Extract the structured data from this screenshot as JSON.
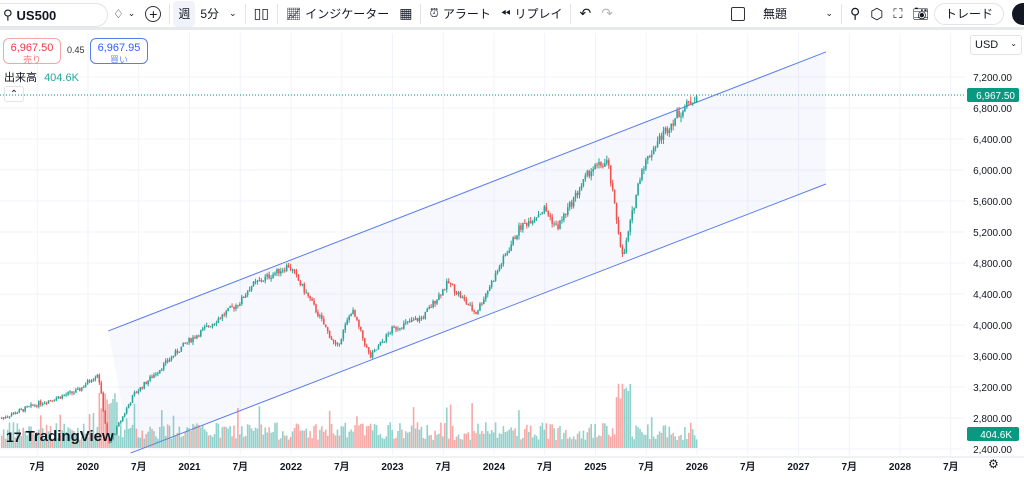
{
  "toolbar": {
    "symbol": "US500",
    "interval_week": "週",
    "interval": "5分",
    "indicators": "インジケーター",
    "alert": "アラート",
    "replay": "リプレイ",
    "layout_name": "無題",
    "trade": "トレード"
  },
  "quote": {
    "sell_price": "6,967.50",
    "sell_label": "売り",
    "spread": "0.45",
    "buy_price": "6,967.95",
    "buy_label": "買い"
  },
  "volume_legend": {
    "label": "出来高",
    "value": "404.6K"
  },
  "currency": "USD",
  "logo": "TradingView",
  "colors": {
    "up": "#26a69a",
    "down": "#ef5350",
    "channel": "#5b7cf0",
    "last_price": "#089981"
  },
  "chart_data": {
    "type": "candlestick",
    "symbol": "US500",
    "timeframe": "weekly",
    "y_ticks": [
      "7,200.00",
      "6,800.00",
      "6,400.00",
      "6,000.00",
      "5,600.00",
      "5,200.00",
      "4,800.00",
      "4,400.00",
      "4,000.00",
      "3,600.00",
      "3,200.00",
      "2,800.00",
      "2,400.00"
    ],
    "ylim": [
      2400,
      7200
    ],
    "x_ticks": [
      {
        "t": 2019.5,
        "label": "7月"
      },
      {
        "t": 2020,
        "label": "2020"
      },
      {
        "t": 2020.5,
        "label": "7月"
      },
      {
        "t": 2021,
        "label": "2021"
      },
      {
        "t": 2021.5,
        "label": "7月"
      },
      {
        "t": 2022,
        "label": "2022"
      },
      {
        "t": 2022.5,
        "label": "7月"
      },
      {
        "t": 2023,
        "label": "2023"
      },
      {
        "t": 2023.5,
        "label": "7月"
      },
      {
        "t": 2024,
        "label": "2024"
      },
      {
        "t": 2024.5,
        "label": "7月"
      },
      {
        "t": 2025,
        "label": "2025"
      },
      {
        "t": 2025.5,
        "label": "7月"
      },
      {
        "t": 2026,
        "label": "2026"
      },
      {
        "t": 2026.5,
        "label": "7月"
      },
      {
        "t": 2027,
        "label": "2027"
      },
      {
        "t": 2027.5,
        "label": "7月"
      },
      {
        "t": 2028,
        "label": "2028"
      },
      {
        "t": 2028.5,
        "label": "7月"
      }
    ],
    "price_path": [
      [
        2019.15,
        2800
      ],
      [
        2019.5,
        2980
      ],
      [
        2019.9,
        3150
      ],
      [
        2020.1,
        3380
      ],
      [
        2020.2,
        2450
      ],
      [
        2020.45,
        3100
      ],
      [
        2020.95,
        3750
      ],
      [
        2021.5,
        4300
      ],
      [
        2021.6,
        4500
      ],
      [
        2021.98,
        4770
      ],
      [
        2022.2,
        4300
      ],
      [
        2022.45,
        3700
      ],
      [
        2022.6,
        4200
      ],
      [
        2022.78,
        3580
      ],
      [
        2023.0,
        3950
      ],
      [
        2023.3,
        4100
      ],
      [
        2023.55,
        4550
      ],
      [
        2023.82,
        4150
      ],
      [
        2024.25,
        5250
      ],
      [
        2024.5,
        5500
      ],
      [
        2024.62,
        5250
      ],
      [
        2024.95,
        6000
      ],
      [
        2025.12,
        6100
      ],
      [
        2025.27,
        4850
      ],
      [
        2025.45,
        6000
      ],
      [
        2025.6,
        6350
      ],
      [
        2025.8,
        6700
      ],
      [
        2026.0,
        6967.5
      ]
    ],
    "last_price": "6,967.50",
    "last_price_value": 6967.5,
    "volume_last": "404.6K",
    "channel": {
      "upper": [
        [
          2020.2,
          3923
        ],
        [
          2027.27,
          7523
        ]
      ],
      "lower": [
        [
          2020.42,
          2348
        ],
        [
          2027.27,
          5819
        ]
      ]
    }
  }
}
